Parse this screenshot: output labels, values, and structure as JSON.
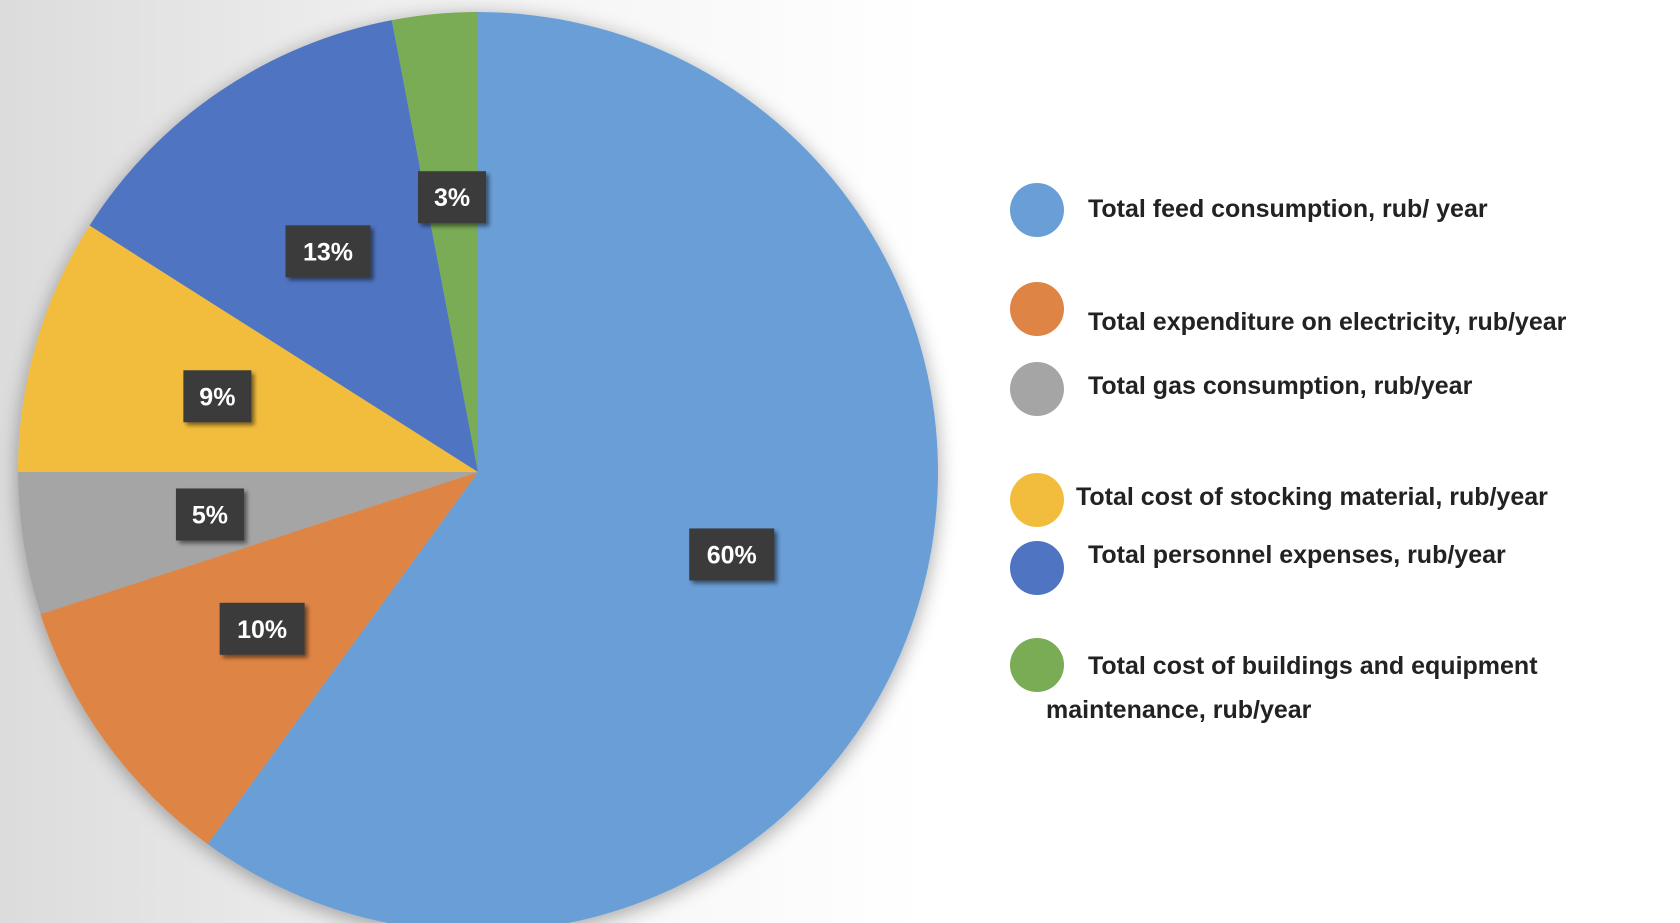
{
  "chart_data": {
    "type": "pie",
    "title": "",
    "start_angle_deg": 0,
    "direction": "clockwise",
    "slices": [
      {
        "label": "Total feed consumption, rub/ year",
        "value": 60,
        "display": "60%",
        "color": "#6a9ed6"
      },
      {
        "label": "Total expenditure on electricity, rub/year",
        "value": 10,
        "display": "10%",
        "color": "#de8445"
      },
      {
        "label": "Total gas consumption, rub/year",
        "value": 5,
        "display": "5%",
        "color": "#a5a5a5"
      },
      {
        "label": "Total cost of stocking material, rub/year",
        "value": 9,
        "display": "9%",
        "color": "#f2bd3c"
      },
      {
        "label": "Total personnel expenses, rub/year",
        "value": 13,
        "display": "13%",
        "color": "#4f74c2"
      },
      {
        "label": "Total cost of buildings and equipment maintenance, rub/year",
        "value": 3,
        "display": "3%",
        "color": "#7aab55"
      }
    ],
    "legend": {
      "placement": "right",
      "entries": [
        {
          "line1": "Total feed consumption, rub/ year",
          "line2": ""
        },
        {
          "line1": "Total expenditure on electricity, rub/year",
          "line2": ""
        },
        {
          "line1": "Total gas consumption, rub/year",
          "line2": ""
        },
        {
          "line1": "Total cost of stocking material, rub/year",
          "line2": ""
        },
        {
          "line1": "Total personnel expenses, rub/year",
          "line2": ""
        },
        {
          "line1": "Total cost of buildings and equipment",
          "line2": "maintenance, rub/year"
        }
      ]
    }
  }
}
